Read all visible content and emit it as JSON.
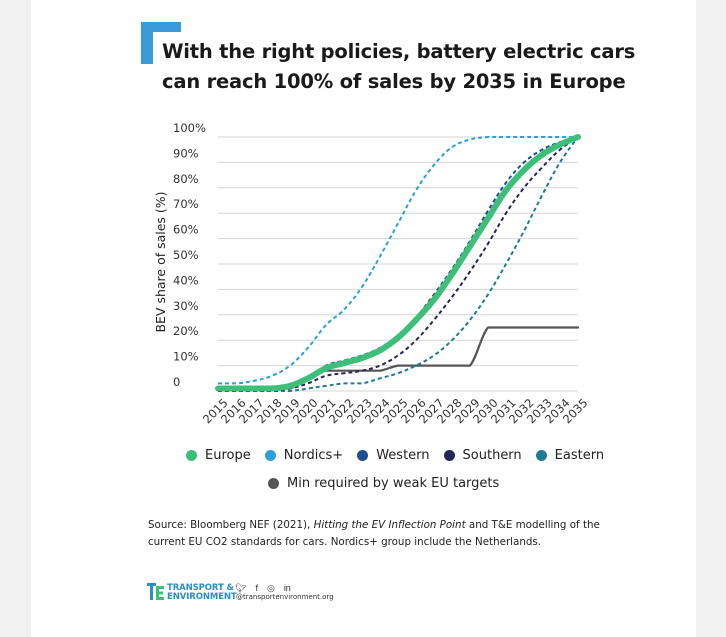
{
  "title_lines": [
    "With the right policies, battery electric cars",
    "can reach 100% of sales by 2035 in Europe"
  ],
  "source": {
    "prefix": "Source: Bloomberg NEF (2021), ",
    "italic": "Hitting the EV Inflection Point",
    "suffix": " and T&E modelling of the current EU CO2 standards for cars. Nordics+ group include the Netherlands."
  },
  "brand": {
    "line1": "TRANSPORT &",
    "line2": "ENVIRONMENT",
    "handle": "@transportenvironment.org",
    "social_icons": [
      "twitter-icon",
      "facebook-icon",
      "instagram-icon",
      "linkedin-icon"
    ]
  },
  "colors": {
    "accent": "#3a9ad9"
  },
  "chart_data": {
    "type": "line",
    "ylabel": "BEV share of sales (%)",
    "xlabel": "",
    "ylim": [
      0,
      100
    ],
    "yticks": [
      "0",
      "10%",
      "20%",
      "30%",
      "40%",
      "50%",
      "60%",
      "70%",
      "80%",
      "90%",
      "100%"
    ],
    "x": [
      2015,
      2016,
      2017,
      2018,
      2019,
      2020,
      2021,
      2022,
      2023,
      2024,
      2025,
      2026,
      2027,
      2028,
      2029,
      2030,
      2031,
      2032,
      2033,
      2034,
      2035
    ],
    "grid": true,
    "legend_position": "bottom",
    "series": [
      {
        "name": "Europe",
        "color": "#3dbf7a",
        "style": "solid-thick",
        "values": [
          1,
          1,
          1,
          1,
          2,
          5,
          9,
          11,
          13,
          16,
          21,
          28,
          36,
          46,
          57,
          68,
          79,
          87,
          93,
          97,
          100
        ]
      },
      {
        "name": "Nordics+",
        "color": "#2aa0d8",
        "style": "dashed",
        "values": [
          3,
          3,
          4,
          6,
          10,
          17,
          26,
          32,
          41,
          53,
          66,
          79,
          89,
          96,
          99,
          100,
          100,
          100,
          100,
          100,
          100
        ]
      },
      {
        "name": "Western",
        "color": "#1f4f93",
        "style": "dashed",
        "values": [
          1,
          1,
          1,
          1,
          2,
          5,
          10,
          12,
          14,
          17,
          22,
          29,
          38,
          48,
          59,
          71,
          82,
          90,
          95,
          98,
          100
        ]
      },
      {
        "name": "Southern",
        "color": "#27265a",
        "style": "dashed",
        "values": [
          0,
          0,
          0,
          0,
          1,
          3,
          6,
          7,
          8,
          10,
          14,
          20,
          28,
          37,
          47,
          58,
          70,
          80,
          88,
          95,
          100
        ]
      },
      {
        "name": "Eastern",
        "color": "#1e7b94",
        "style": "dashed",
        "values": [
          0,
          0,
          0,
          0,
          0,
          1,
          2,
          3,
          3,
          5,
          7,
          10,
          14,
          20,
          28,
          38,
          50,
          63,
          77,
          90,
          100
        ]
      },
      {
        "name": "Min required by weak EU targets",
        "color": "#555555",
        "style": "solid",
        "values": [
          1,
          1,
          1,
          1,
          1,
          5,
          8,
          8,
          8,
          8,
          10,
          10,
          10,
          10,
          10,
          25,
          25,
          25,
          25,
          25,
          25
        ]
      }
    ]
  }
}
